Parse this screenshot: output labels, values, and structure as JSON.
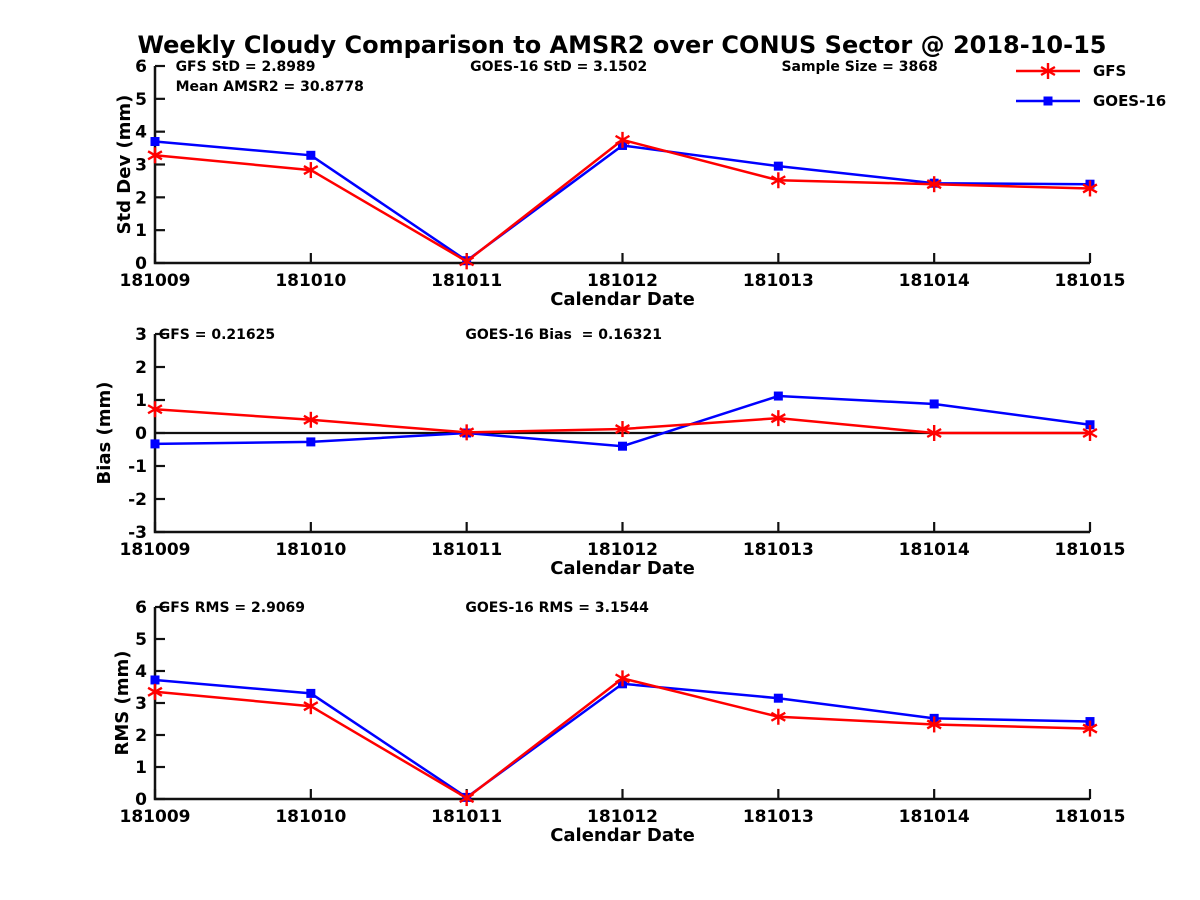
{
  "title": "Weekly Cloudy Comparison to AMSR2 over CONUS Sector @ 2018-10-15",
  "colors": {
    "gfs": "#ff0000",
    "goes16": "#0000ff",
    "axis": "#111111"
  },
  "legend": [
    {
      "label": "GFS",
      "color": "#ff0000",
      "marker": "asterisk"
    },
    {
      "label": "GOES-16",
      "color": "#0000ff",
      "marker": "square"
    }
  ],
  "chart_data": [
    {
      "id": "std_dev",
      "type": "line",
      "xlabel": "Calendar Date",
      "ylabel": "Std Dev (mm)",
      "categories": [
        "181009",
        "181010",
        "181011",
        "181012",
        "181013",
        "181014",
        "181015"
      ],
      "ylim": [
        0,
        6
      ],
      "yticks": [
        0,
        1,
        2,
        3,
        4,
        5,
        6
      ],
      "zero_line": false,
      "annotations": [
        {
          "text": "GFS StD = 2.8989",
          "fx": 0.022,
          "row": 0
        },
        {
          "text": "Mean AMSR2 = 30.8778",
          "fx": 0.022,
          "row": 1
        },
        {
          "text": "GOES-16 StD = 3.1502",
          "fx": 0.337,
          "row": 0
        },
        {
          "text": "Sample Size = 3868",
          "fx": 0.67,
          "row": 0
        }
      ],
      "series": [
        {
          "name": "GFS",
          "color": "#ff0000",
          "marker": "asterisk",
          "values": [
            3.28,
            2.83,
            0.05,
            3.75,
            2.52,
            2.4,
            2.27
          ]
        },
        {
          "name": "GOES-16",
          "color": "#0000ff",
          "marker": "square",
          "values": [
            3.7,
            3.28,
            0.07,
            3.58,
            2.95,
            2.43,
            2.4
          ]
        }
      ]
    },
    {
      "id": "bias",
      "type": "line",
      "xlabel": "Calendar Date",
      "ylabel": "Bias (mm)",
      "categories": [
        "181009",
        "181010",
        "181011",
        "181012",
        "181013",
        "181014",
        "181015"
      ],
      "ylim": [
        -3,
        3
      ],
      "yticks": [
        -3,
        -2,
        -1,
        0,
        1,
        2,
        3
      ],
      "zero_line": true,
      "annotations": [
        {
          "text": "GFS = 0.21625",
          "fx": 0.004,
          "row": 0
        },
        {
          "text": "GOES-16 Bias  = 0.16321",
          "fx": 0.332,
          "row": 0
        }
      ],
      "series": [
        {
          "name": "GFS",
          "color": "#ff0000",
          "marker": "asterisk",
          "values": [
            0.72,
            0.4,
            0.02,
            0.12,
            0.45,
            0.0,
            0.0
          ]
        },
        {
          "name": "GOES-16",
          "color": "#0000ff",
          "marker": "square",
          "values": [
            -0.33,
            -0.27,
            0.0,
            -0.4,
            1.12,
            0.88,
            0.25
          ]
        }
      ]
    },
    {
      "id": "rms",
      "type": "line",
      "xlabel": "Calendar Date",
      "ylabel": "RMS (mm)",
      "categories": [
        "181009",
        "181010",
        "181011",
        "181012",
        "181013",
        "181014",
        "181015"
      ],
      "ylim": [
        0,
        6
      ],
      "yticks": [
        0,
        1,
        2,
        3,
        4,
        5,
        6
      ],
      "zero_line": false,
      "annotations": [
        {
          "text": "GFS RMS = 2.9069",
          "fx": 0.004,
          "row": 0
        },
        {
          "text": "GOES-16 RMS = 3.1544",
          "fx": 0.332,
          "row": 0
        }
      ],
      "series": [
        {
          "name": "GFS",
          "color": "#ff0000",
          "marker": "asterisk",
          "values": [
            3.35,
            2.9,
            0.03,
            3.77,
            2.57,
            2.33,
            2.2
          ]
        },
        {
          "name": "GOES-16",
          "color": "#0000ff",
          "marker": "square",
          "values": [
            3.72,
            3.3,
            0.05,
            3.6,
            3.15,
            2.52,
            2.42
          ]
        }
      ]
    }
  ]
}
